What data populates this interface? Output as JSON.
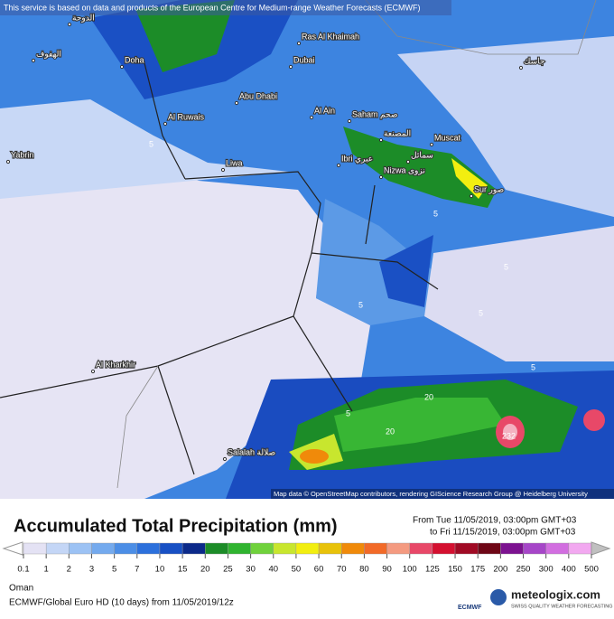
{
  "header": {
    "notice": "This service is based on data and products of the European Centre for Medium-range Weather Forecasts (ECMWF)"
  },
  "map": {
    "places": [
      "Doha",
      "Ras Al Khaimah",
      "Dubai",
      "Abu Dhabi",
      "Al Ruwais",
      "Al Ain",
      "Saham صحم",
      "Muscat",
      "Ibri عبري",
      "Nizwa نزوى",
      "Sur صور",
      "Liwa",
      "Yabrin",
      "Al Kharkhir",
      "Salalah صلالة",
      "المصنعة",
      "سمائل",
      "الهفوف",
      "الدوحة",
      "جاسك"
    ],
    "contours": [
      "5",
      "5",
      "5",
      "5",
      "5",
      "5",
      "5",
      "20",
      "20",
      "232"
    ],
    "attribution": "Map data © OpenStreetMap contributors, rendering GIScience Research Group @ Heidelberg University"
  },
  "footer": {
    "title": "Accumulated Total Precipitation (mm)",
    "from": "From Tue 11/05/2019, 03:00pm GMT+03",
    "to": "to Fri 11/15/2019, 03:00pm GMT+03",
    "region": "Oman",
    "model": "ECMWF/Global Euro HD (10 days)  from  11/05/2019/12z",
    "ecmwf": "ECMWF",
    "brand": "meteologix.com",
    "slogan": "SWISS QUALITY WEATHER FORECASTING"
  },
  "legend": {
    "labels": [
      0.1,
      1,
      2,
      3,
      5,
      7,
      10,
      15,
      20,
      25,
      30,
      40,
      50,
      60,
      70,
      80,
      90,
      100,
      125,
      150,
      175,
      200,
      250,
      300,
      400,
      500
    ],
    "colors": [
      "#e4e2f4",
      "#c4d6f6",
      "#9cc2f4",
      "#74aaee",
      "#4c8ee6",
      "#2c70dc",
      "#1850c4",
      "#0c2a8a",
      "#1c8c28",
      "#30b430",
      "#70d23c",
      "#c8e62e",
      "#f2ee10",
      "#e8c20a",
      "#f08a0a",
      "#f26a28",
      "#f49a80",
      "#e84868",
      "#d41030",
      "#a00a24",
      "#6e0616",
      "#7c1290",
      "#a646c8",
      "#d26ee0",
      "#f2a8f0",
      "#c0c0c0"
    ]
  }
}
